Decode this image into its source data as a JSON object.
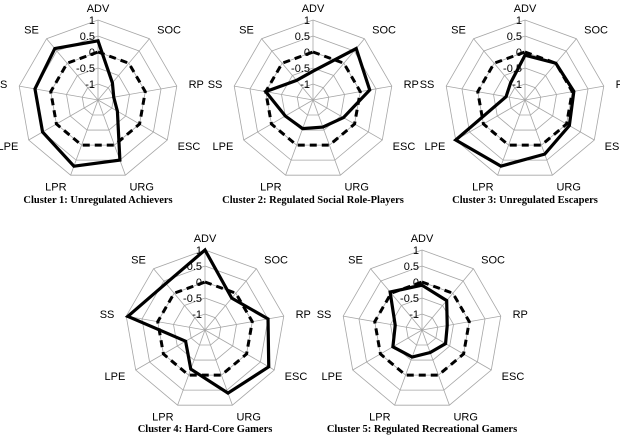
{
  "chart_data": [
    {
      "type": "radar",
      "title": "Cluster 1: Unregulated Achievers",
      "axes": [
        "ADV",
        "SOC",
        "RP",
        "ESC",
        "URG",
        "LPR",
        "LPE",
        "SS",
        "SE"
      ],
      "rlim": [
        -1.5,
        1
      ],
      "ticks": [
        "1",
        "0.5",
        "0",
        "-0.5",
        "-1"
      ],
      "series": [
        {
          "style": "solid",
          "values": [
            0.35,
            -0.8,
            -1.0,
            -0.8,
            0.5,
            0.7,
            0.5,
            0.5,
            0.6
          ]
        },
        {
          "style": "dashed",
          "values": [
            0,
            0,
            0,
            0,
            0,
            0,
            0,
            0,
            0
          ]
        }
      ]
    },
    {
      "type": "radar",
      "title": "Cluster 2: Regulated Social Role-Players",
      "axes": [
        "ADV",
        "SOC",
        "RP",
        "ESC",
        "URG",
        "LPR",
        "LPE",
        "SS",
        "SE"
      ],
      "rlim": [
        -1.5,
        1
      ],
      "ticks": [
        "1",
        "0.5",
        "0",
        "-0.5",
        "-1"
      ],
      "series": [
        {
          "style": "solid",
          "values": [
            -0.6,
            0.6,
            0.3,
            -0.4,
            -0.6,
            -0.55,
            -0.5,
            0.0,
            -0.7
          ]
        },
        {
          "style": "dashed",
          "values": [
            0,
            0,
            0,
            0,
            0,
            0,
            0,
            0,
            0
          ]
        }
      ]
    },
    {
      "type": "radar",
      "title": "Cluster 3: Unregulated Escapers",
      "axes": [
        "ADV",
        "SOC",
        "RP",
        "ESC",
        "URG",
        "LPR",
        "LPE",
        "SS",
        "SE"
      ],
      "rlim": [
        -1.5,
        1
      ],
      "ticks": [
        "1",
        "0.5",
        "0",
        "-0.5",
        "-1"
      ],
      "series": [
        {
          "style": "solid",
          "values": [
            -0.1,
            0.0,
            0.05,
            0.1,
            0.3,
            0.7,
            1.0,
            -0.9,
            -0.8
          ]
        },
        {
          "style": "dashed",
          "values": [
            0,
            0,
            0,
            0,
            0,
            0,
            0,
            0,
            0
          ]
        }
      ]
    },
    {
      "type": "radar",
      "title": "Cluster 4: Hard-Core Gamers",
      "axes": [
        "ADV",
        "SOC",
        "RP",
        "ESC",
        "URG",
        "LPR",
        "LPE",
        "SS",
        "SE"
      ],
      "rlim": [
        -1.5,
        1
      ],
      "ticks": [
        "1",
        "0.5",
        "0",
        "-0.5",
        "-1"
      ],
      "series": [
        {
          "style": "solid",
          "values": [
            1.0,
            -0.2,
            0.5,
            0.8,
            0.6,
            -0.2,
            -0.8,
            0.95,
            0.4
          ]
        },
        {
          "style": "dashed",
          "values": [
            0,
            0,
            0,
            0,
            0,
            0,
            0,
            0,
            0
          ]
        }
      ]
    },
    {
      "type": "radar",
      "title": "Cluster 5: Regulated Recreational Gamers",
      "axes": [
        "ADV",
        "SOC",
        "RP",
        "ESC",
        "URG",
        "LPR",
        "LPE",
        "SS",
        "SE"
      ],
      "rlim": [
        -1.5,
        1
      ],
      "ticks": [
        "1",
        "0.5",
        "0",
        "-0.5",
        "-1"
      ],
      "series": [
        {
          "style": "solid",
          "values": [
            -0.1,
            -0.3,
            -0.7,
            -0.65,
            -0.75,
            -0.6,
            -0.45,
            -0.65,
            0.05
          ]
        },
        {
          "style": "dashed",
          "values": [
            0,
            0,
            0,
            0,
            0,
            0,
            0,
            0,
            0
          ]
        }
      ]
    }
  ]
}
